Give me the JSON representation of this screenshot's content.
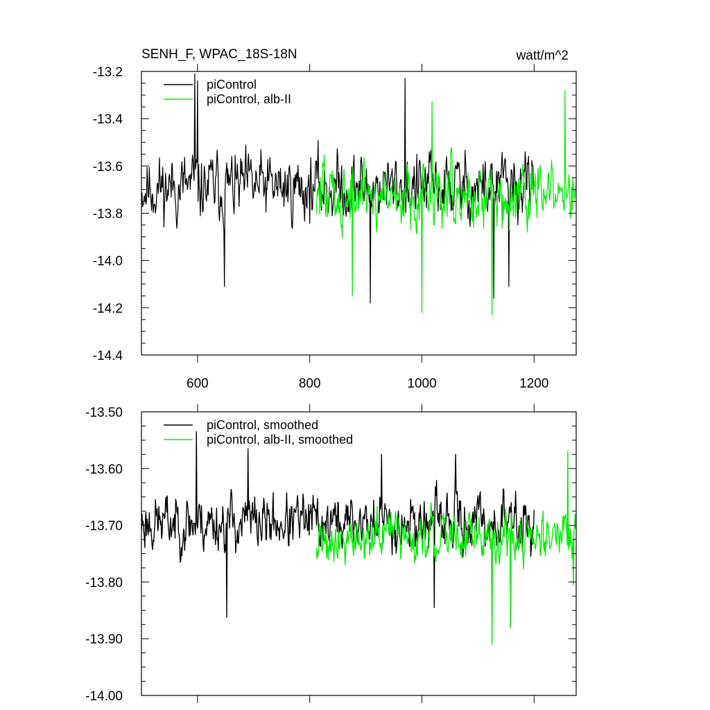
{
  "figure": {
    "title_left": "SENH_F, WPAC_18S-18N",
    "title_right": "watt/m^2"
  },
  "chart_data": [
    {
      "type": "line",
      "title": "SENH_F, WPAC_18S-18N",
      "units": "watt/m^2",
      "xlim": [
        500,
        1275
      ],
      "ylim": [
        -14.4,
        -13.2
      ],
      "xticks": [
        600,
        800,
        1000,
        1200
      ],
      "xtick_labels": [
        "600",
        "800",
        "1000",
        "1200"
      ],
      "yticks": [
        -14.4,
        -14.2,
        -14.0,
        -13.8,
        -13.6,
        -13.4,
        -13.2
      ],
      "ytick_labels": [
        "-14.4",
        "-14.2",
        "-14.0",
        "-13.8",
        "-13.6",
        "-13.4",
        "-13.2"
      ],
      "grid": false,
      "legend_position": "top-left",
      "series": [
        {
          "name": "piControl",
          "color": "#000000",
          "x_range": [
            500,
            1200
          ],
          "mean": -13.69,
          "amplitude": 0.13,
          "seed": 11,
          "extremes": [
            [
              595,
              -13.21
            ],
            [
              600,
              -13.24
            ],
            [
              648,
              -14.11
            ],
            [
              908,
              -14.18
            ],
            [
              970,
              -13.23
            ],
            [
              1128,
              -14.16
            ],
            [
              1155,
              -14.11
            ]
          ]
        },
        {
          "name": "piControl, alb-II",
          "color": "#00ee00",
          "x_range": [
            812,
            1275
          ],
          "mean": -13.72,
          "amplitude": 0.13,
          "seed": 47,
          "extremes": [
            [
              1000,
              -14.22
            ],
            [
              1125,
              -14.23
            ],
            [
              1255,
              -13.28
            ],
            [
              876,
              -14.15
            ],
            [
              1018,
              -13.33
            ]
          ]
        }
      ]
    },
    {
      "type": "line",
      "title": "",
      "xlim": [
        500,
        1275
      ],
      "ylim": [
        -14.0,
        -13.5
      ],
      "xticks": [
        600,
        800,
        1000,
        1200
      ],
      "xtick_labels": [],
      "yticks": [
        -14.0,
        -13.9,
        -13.8,
        -13.7,
        -13.6,
        -13.5
      ],
      "ytick_labels": [
        "-14.00",
        "-13.90",
        "-13.80",
        "-13.70",
        "-13.60",
        "-13.50"
      ],
      "grid": false,
      "legend_position": "top-left",
      "series": [
        {
          "name": "piControl, smoothed",
          "color": "#000000",
          "x_range": [
            500,
            1200
          ],
          "mean": -13.695,
          "amplitude": 0.045,
          "seed": 23,
          "extremes": [
            [
              598,
              -13.535
            ],
            [
              652,
              -13.862
            ],
            [
              690,
              -13.565
            ],
            [
              928,
              -13.575
            ],
            [
              1022,
              -13.845
            ],
            [
              1060,
              -13.575
            ]
          ]
        },
        {
          "name": "piControl, alb-II, smoothed",
          "color": "#00ee00",
          "x_range": [
            812,
            1275
          ],
          "mean": -13.72,
          "amplitude": 0.04,
          "seed": 91,
          "extremes": [
            [
              1125,
              -13.91
            ],
            [
              1158,
              -13.88
            ],
            [
              1260,
              -13.57
            ],
            [
              1270,
              -13.805
            ]
          ]
        }
      ]
    }
  ]
}
